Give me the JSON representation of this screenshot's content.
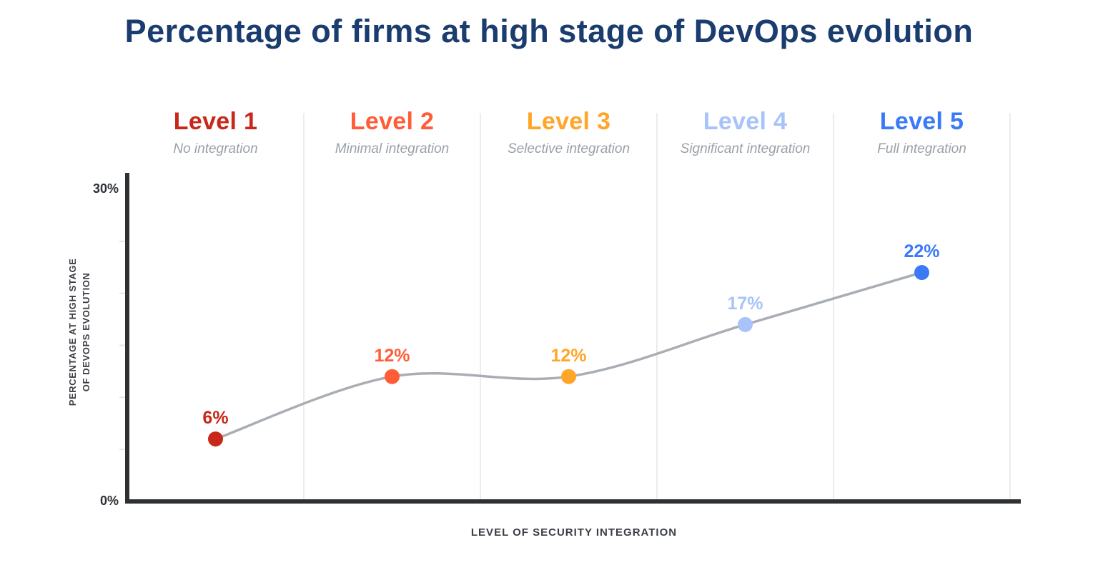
{
  "title": "Percentage of firms at high stage of DevOps evolution",
  "x_axis": {
    "title": "LEVEL OF SECURITY INTEGRATION"
  },
  "y_axis": {
    "title_line1": "PERCENTAGE AT HIGH STAGE",
    "title_line2": "OF DEVOPS EVOLUTION",
    "max_label": "30%",
    "min_label": "0%"
  },
  "chart_data": {
    "type": "line",
    "title": "Percentage of firms at high stage of DevOps evolution",
    "xlabel": "LEVEL OF SECURITY INTEGRATION",
    "ylabel": "PERCENTAGE AT HIGH STAGE OF DEVOPS EVOLUTION",
    "categories": [
      "Level 1",
      "Level 2",
      "Level 3",
      "Level 4",
      "Level 5"
    ],
    "category_subtitles": [
      "No integration",
      "Minimal integration",
      "Selective integration",
      "Significant integration",
      "Full integration"
    ],
    "values": [
      6,
      12,
      12,
      17,
      22
    ],
    "value_labels": [
      "6%",
      "12%",
      "12%",
      "17%",
      "22%"
    ],
    "point_colors": [
      "#c7281a",
      "#ff5c38",
      "#ffa629",
      "#a7c3f9",
      "#3a7af7"
    ],
    "ylim": [
      0,
      30
    ],
    "ytick_labels_shown": [
      "0%",
      "30%"
    ],
    "minor_ticks_percent": [
      5,
      10,
      15,
      20,
      25
    ],
    "line_color": "#a9aeb4",
    "grid": "vertical-column-dividers-only",
    "legend_position": "none"
  },
  "colors": {
    "title": "#1a3c6e",
    "subtitle": "#9aa0a8",
    "axis": "#2e3134",
    "divider": "#ececec",
    "tick": "#e6e6e6",
    "line": "#a9aeb4",
    "background": "#ffffff"
  }
}
